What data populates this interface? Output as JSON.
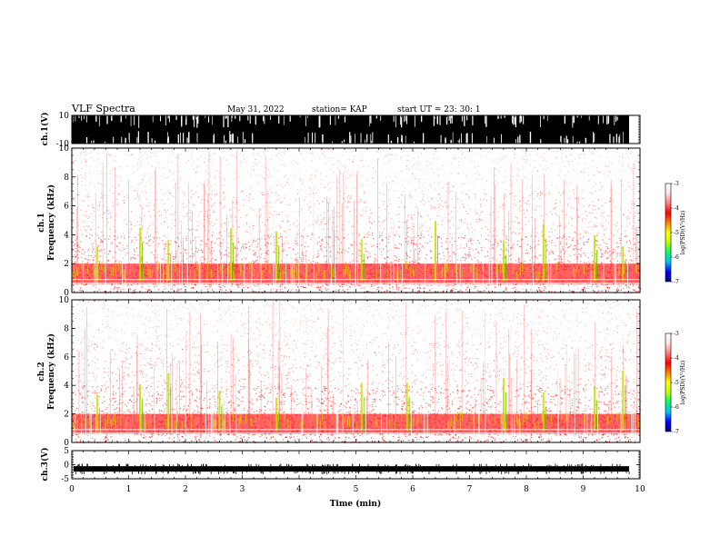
{
  "header": {
    "title": "VLF Spectra",
    "date": "May 31, 2022",
    "station": "station= KAP",
    "start": "start  UT  =   23: 30: 1"
  },
  "colorbar": {
    "label": "log(PSD)(V²/Hz)",
    "ticks": [
      "-3",
      "-4",
      "-5",
      "-6",
      "-7"
    ],
    "colors": [
      "#000080",
      "#0000ff",
      "#00c0ff",
      "#00ff60",
      "#c0ff00",
      "#ffff00",
      "#ff8000",
      "#ff0000",
      "#ff8080",
      "#ffe0e0",
      "#ffffff"
    ]
  },
  "chart_data": [
    {
      "type": "line",
      "panel": "ch1-waveform",
      "ylabel": "ch.1(V)",
      "ylim": [
        -10,
        10
      ],
      "ytick_labels": [
        "10",
        "-10"
      ],
      "note": "saturated waveform fills full range",
      "xlim": [
        0,
        10
      ]
    },
    {
      "type": "heatmap",
      "panel": "ch1-spectrogram",
      "ylabel": "ch.1\nFrequency (kHz)",
      "ylabel_lines": [
        "ch.1",
        "Frequency  (kHz)"
      ],
      "ylim": [
        0,
        10
      ],
      "ytick_labels": [
        "0",
        "2",
        "4",
        "6",
        "8",
        "10"
      ],
      "xlim": [
        0,
        10
      ],
      "zlim": [
        -7,
        -3
      ],
      "burst_times_min": [
        0.45,
        1.2,
        1.7,
        2.8,
        3.6,
        5.1,
        6.4,
        7.6,
        8.3,
        9.2,
        9.7
      ]
    },
    {
      "type": "heatmap",
      "panel": "ch2-spectrogram",
      "ylabel_lines": [
        "ch.2",
        "Frequency  (kHz)"
      ],
      "ylim": [
        0,
        10
      ],
      "ytick_labels": [
        "0",
        "2",
        "4",
        "6",
        "8",
        "10"
      ],
      "xlim": [
        0,
        10
      ],
      "zlim": [
        -7,
        -3
      ],
      "burst_times_min": [
        0.45,
        1.2,
        1.7,
        2.6,
        3.6,
        5.1,
        5.9,
        7.6,
        8.3,
        9.2,
        9.7
      ]
    },
    {
      "type": "line",
      "panel": "ch3-waveform",
      "ylabel": "ch.3(V)",
      "ylim": [
        -5,
        5
      ],
      "ytick_labels": [
        "5",
        "0",
        "-5"
      ],
      "baseline_value": -1.5,
      "xlim": [
        0,
        10
      ],
      "xlabel": "Time  (min)",
      "xtick_labels": [
        "0",
        "1",
        "2",
        "3",
        "4",
        "5",
        "6",
        "7",
        "8",
        "9",
        "10"
      ]
    }
  ]
}
